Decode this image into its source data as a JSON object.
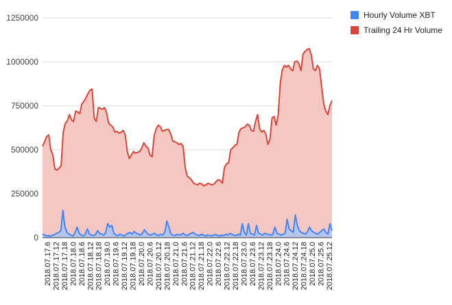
{
  "chart_data": {
    "type": "area",
    "title": "",
    "xlabel": "",
    "ylabel": "",
    "ylim": [
      0,
      1250000
    ],
    "yticks": [
      0,
      250000,
      500000,
      750000,
      1000000,
      1250000
    ],
    "ytick_labels": [
      "0",
      "250000",
      "500000",
      "750000",
      "1000000",
      "1250000"
    ],
    "x_tick_labels": [
      "2018.07.17.6",
      "2018.07.17.12",
      "2018.07.17.18",
      "2018.07.18.0",
      "2018.07.18.6",
      "2018.07.18.12",
      "2018.07.18.18",
      "2018.07.19.0",
      "2018.07.19.6",
      "2018.07.19.12",
      "2018.07.19.18",
      "2018.07.20.0",
      "2018.07.20.6",
      "2018.07.20.12",
      "2018.07.20.18",
      "2018.07.21.0",
      "2018.07.21.6",
      "2018.07.21.12",
      "2018.07.21.18",
      "2018.07.22.0",
      "2018.07.22.6",
      "2018.07.22.12",
      "2018.07.22.18",
      "2018.07.23.0",
      "2018.07.23.6",
      "2018.07.23.12",
      "2018.07.23.18",
      "2018.07.24.0",
      "2018.07.24.6",
      "2018.07.24.12",
      "2018.07.24.18",
      "2018.07.25.0",
      "2018.07.25.6",
      "2018.07.25.12"
    ],
    "legend_position": "right",
    "grid": true,
    "series": [
      {
        "name": "Hourly Volume XBT",
        "color": "#4285f4",
        "fill": "#a9c4f5",
        "values": [
          20000,
          15000,
          10000,
          12000,
          8000,
          15000,
          18000,
          25000,
          30000,
          40000,
          155000,
          60000,
          30000,
          20000,
          15000,
          10000,
          30000,
          60000,
          25000,
          15000,
          10000,
          20000,
          50000,
          20000,
          15000,
          12000,
          18000,
          40000,
          25000,
          20000,
          15000,
          30000,
          80000,
          60000,
          70000,
          25000,
          15000,
          12000,
          20000,
          15000,
          10000,
          18000,
          25000,
          30000,
          20000,
          35000,
          25000,
          20000,
          15000,
          25000,
          45000,
          30000,
          18000,
          15000,
          20000,
          25000,
          15000,
          12000,
          20000,
          15000,
          30000,
          95000,
          60000,
          20000,
          15000,
          12000,
          20000,
          15000,
          18000,
          25000,
          15000,
          12000,
          20000,
          25000,
          30000,
          18000,
          15000,
          12000,
          20000,
          15000,
          10000,
          15000,
          12000,
          10000,
          15000,
          18000,
          12000,
          10000,
          15000,
          12000,
          20000,
          15000,
          25000,
          18000,
          15000,
          12000,
          20000,
          15000,
          80000,
          30000,
          15000,
          80000,
          25000,
          20000,
          15000,
          70000,
          25000,
          20000,
          15000,
          25000,
          20000,
          18000,
          15000,
          20000,
          60000,
          25000,
          20000,
          15000,
          20000,
          25000,
          105000,
          50000,
          40000,
          30000,
          130000,
          70000,
          40000,
          30000,
          25000,
          20000,
          35000,
          60000,
          40000,
          30000,
          25000,
          20000,
          30000,
          40000,
          50000,
          30000,
          20000,
          80000,
          40000
        ],
        "values_note": ""
      },
      {
        "name": "Trailing 24 Hr Volume",
        "color": "#db4437",
        "fill": "#f4c7c3",
        "values": [
          520000,
          545000,
          575000,
          585000,
          500000,
          470000,
          390000,
          385000,
          395000,
          410000,
          600000,
          650000,
          665000,
          700000,
          670000,
          660000,
          720000,
          715000,
          705000,
          760000,
          775000,
          795000,
          820000,
          840000,
          845000,
          680000,
          660000,
          740000,
          735000,
          730000,
          740000,
          710000,
          650000,
          640000,
          630000,
          600000,
          605000,
          595000,
          600000,
          610000,
          585000,
          490000,
          450000,
          470000,
          490000,
          480000,
          485000,
          490000,
          510000,
          540000,
          520000,
          510000,
          470000,
          460000,
          580000,
          620000,
          640000,
          630000,
          605000,
          610000,
          615000,
          615000,
          590000,
          550000,
          545000,
          540000,
          530000,
          535000,
          520000,
          400000,
          350000,
          340000,
          330000,
          310000,
          305000,
          300000,
          310000,
          305000,
          295000,
          300000,
          310000,
          305000,
          300000,
          305000,
          320000,
          330000,
          325000,
          310000,
          400000,
          420000,
          425000,
          500000,
          510000,
          525000,
          530000,
          600000,
          620000,
          625000,
          630000,
          645000,
          640000,
          610000,
          605000,
          660000,
          700000,
          620000,
          600000,
          610000,
          590000,
          530000,
          560000,
          680000,
          690000,
          640000,
          700000,
          880000,
          955000,
          980000,
          970000,
          980000,
          960000,
          950000,
          1000000,
          1005000,
          990000,
          950000,
          1045000,
          1060000,
          1070000,
          1075000,
          1040000,
          960000,
          950000,
          980000,
          960000,
          860000,
          760000,
          720000,
          700000,
          750000,
          780000
        ],
        "values_note": ""
      }
    ]
  }
}
